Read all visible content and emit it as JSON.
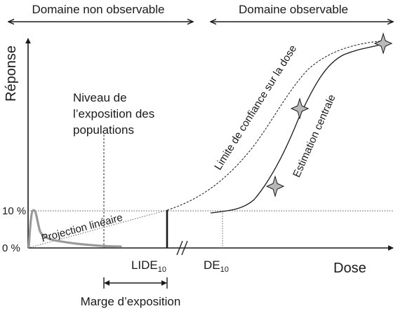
{
  "regions": {
    "unobservable": "Domaine non observable",
    "observable": "Domaine observable"
  },
  "axes": {
    "y_label": "Réponse",
    "x_label": "Dose",
    "y_tick_top": "10 %",
    "y_tick_bottom": "0 %"
  },
  "annotations": {
    "exposure_line1": "Niveau de",
    "exposure_line2": "l’exposition des",
    "exposure_line3": "populations",
    "confidence_limit": "Limite de confiance sur la dose",
    "central_estimate": "Estimation centrale",
    "linear_projection": "Projection linéaire",
    "lide_main": "LIDE",
    "lide_sub": "10",
    "de_main": "DE",
    "de_sub": "10",
    "margin": "Marge d’exposition"
  },
  "colors": {
    "ink": "#1a1a1a",
    "exposure_curve": "#999999",
    "guides": "#555555",
    "marker_fill": "#b8b8b8"
  }
}
